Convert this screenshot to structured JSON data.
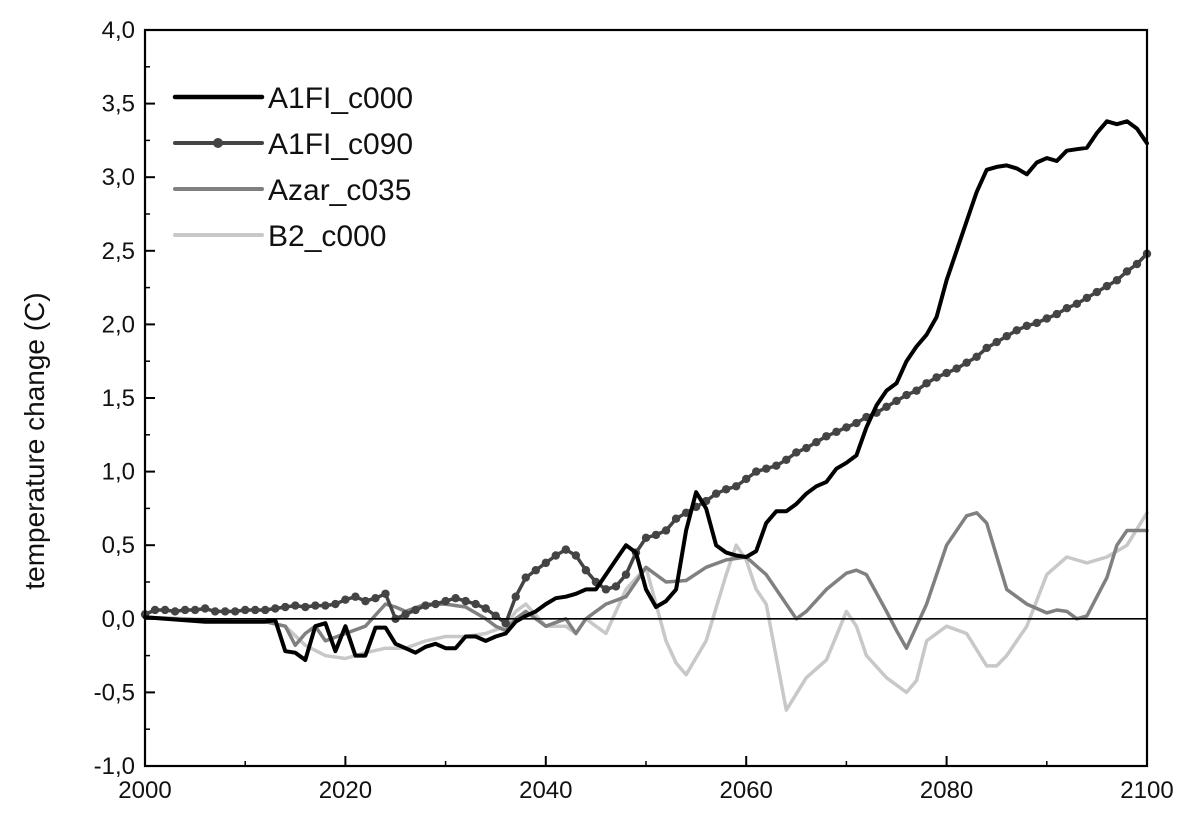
{
  "chart_data": {
    "type": "line",
    "title": "",
    "xlabel": "",
    "ylabel": "temperature change (C)",
    "xlim": [
      2000,
      2100
    ],
    "ylim": [
      -1.0,
      4.0
    ],
    "x_ticks": [
      2000,
      2020,
      2040,
      2060,
      2080,
      2100
    ],
    "x_tick_labels": [
      "2000",
      "2020",
      "2040",
      "2060",
      "2080",
      "2100"
    ],
    "y_ticks": [
      -1.0,
      -0.5,
      0.0,
      0.5,
      1.0,
      1.5,
      2.0,
      2.5,
      3.0,
      3.5,
      4.0
    ],
    "y_tick_labels": [
      "-1,0",
      "-0,5",
      "0,0",
      "0,5",
      "1,0",
      "1,5",
      "2,0",
      "2,5",
      "3,0",
      "3,5",
      "4,0"
    ],
    "grid": false,
    "zero_line": true,
    "legend_position": "top-left",
    "series": [
      {
        "name": "A1FI_c000",
        "color": "#000000",
        "markers": false,
        "x": [
          2000,
          2002,
          2004,
          2006,
          2008,
          2010,
          2012,
          2013,
          2014,
          2015,
          2016,
          2017,
          2018,
          2019,
          2020,
          2021,
          2022,
          2023,
          2024,
          2025,
          2026,
          2027,
          2028,
          2029,
          2030,
          2031,
          2032,
          2033,
          2034,
          2035,
          2036,
          2037,
          2038,
          2039,
          2040,
          2041,
          2042,
          2043,
          2044,
          2045,
          2046,
          2047,
          2048,
          2049,
          2050,
          2051,
          2052,
          2053,
          2054,
          2055,
          2056,
          2057,
          2058,
          2059,
          2060,
          2061,
          2062,
          2063,
          2064,
          2065,
          2066,
          2067,
          2068,
          2069,
          2070,
          2071,
          2072,
          2073,
          2074,
          2075,
          2076,
          2077,
          2078,
          2079,
          2080,
          2081,
          2082,
          2083,
          2084,
          2085,
          2086,
          2087,
          2088,
          2089,
          2090,
          2091,
          2092,
          2093,
          2094,
          2095,
          2096,
          2097,
          2098,
          2099,
          2100
        ],
        "y": [
          0.01,
          0.0,
          -0.01,
          -0.02,
          -0.02,
          -0.02,
          -0.02,
          -0.01,
          -0.22,
          -0.23,
          -0.28,
          -0.05,
          -0.03,
          -0.22,
          -0.05,
          -0.25,
          -0.25,
          -0.06,
          -0.06,
          -0.17,
          -0.2,
          -0.23,
          -0.19,
          -0.17,
          -0.2,
          -0.2,
          -0.12,
          -0.12,
          -0.15,
          -0.12,
          -0.1,
          -0.02,
          0.02,
          0.05,
          0.1,
          0.14,
          0.15,
          0.17,
          0.2,
          0.2,
          0.3,
          0.4,
          0.5,
          0.45,
          0.2,
          0.08,
          0.12,
          0.2,
          0.6,
          0.86,
          0.75,
          0.5,
          0.45,
          0.43,
          0.42,
          0.46,
          0.65,
          0.73,
          0.73,
          0.78,
          0.85,
          0.9,
          0.93,
          1.02,
          1.06,
          1.11,
          1.3,
          1.45,
          1.55,
          1.6,
          1.75,
          1.85,
          1.93,
          2.05,
          2.3,
          2.5,
          2.7,
          2.9,
          3.05,
          3.07,
          3.08,
          3.06,
          3.02,
          3.1,
          3.13,
          3.11,
          3.18,
          3.19,
          3.2,
          3.3,
          3.38,
          3.36,
          3.38,
          3.33,
          3.23
        ]
      },
      {
        "name": "A1FI_c090",
        "color": "#444444",
        "markers": true,
        "x": [
          2000,
          2001,
          2002,
          2003,
          2004,
          2005,
          2006,
          2007,
          2008,
          2009,
          2010,
          2011,
          2012,
          2013,
          2014,
          2015,
          2016,
          2017,
          2018,
          2019,
          2020,
          2021,
          2022,
          2023,
          2024,
          2025,
          2026,
          2027,
          2028,
          2029,
          2030,
          2031,
          2032,
          2033,
          2034,
          2035,
          2036,
          2037,
          2038,
          2039,
          2040,
          2041,
          2042,
          2043,
          2044,
          2045,
          2046,
          2047,
          2048,
          2049,
          2050,
          2051,
          2052,
          2053,
          2054,
          2055,
          2056,
          2057,
          2058,
          2059,
          2060,
          2061,
          2062,
          2063,
          2064,
          2065,
          2066,
          2067,
          2068,
          2069,
          2070,
          2071,
          2072,
          2073,
          2074,
          2075,
          2076,
          2077,
          2078,
          2079,
          2080,
          2081,
          2082,
          2083,
          2084,
          2085,
          2086,
          2087,
          2088,
          2089,
          2090,
          2091,
          2092,
          2093,
          2094,
          2095,
          2096,
          2097,
          2098,
          2099,
          2100
        ],
        "y": [
          0.03,
          0.06,
          0.06,
          0.05,
          0.06,
          0.06,
          0.07,
          0.05,
          0.05,
          0.05,
          0.06,
          0.06,
          0.06,
          0.07,
          0.08,
          0.09,
          0.08,
          0.09,
          0.09,
          0.1,
          0.13,
          0.15,
          0.12,
          0.14,
          0.17,
          0.0,
          0.03,
          0.06,
          0.09,
          0.1,
          0.12,
          0.14,
          0.12,
          0.1,
          0.07,
          0.02,
          -0.03,
          0.15,
          0.28,
          0.33,
          0.38,
          0.43,
          0.47,
          0.43,
          0.33,
          0.25,
          0.2,
          0.22,
          0.3,
          0.45,
          0.55,
          0.57,
          0.6,
          0.68,
          0.72,
          0.76,
          0.8,
          0.85,
          0.88,
          0.9,
          0.95,
          1.0,
          1.02,
          1.04,
          1.08,
          1.13,
          1.16,
          1.2,
          1.24,
          1.27,
          1.3,
          1.33,
          1.37,
          1.4,
          1.44,
          1.48,
          1.52,
          1.55,
          1.6,
          1.64,
          1.67,
          1.7,
          1.74,
          1.78,
          1.84,
          1.88,
          1.92,
          1.96,
          1.99,
          2.01,
          2.04,
          2.07,
          2.11,
          2.14,
          2.18,
          2.22,
          2.26,
          2.3,
          2.36,
          2.41,
          2.48
        ]
      },
      {
        "name": "Azar_c035",
        "color": "#808080",
        "markers": false,
        "x": [
          2000,
          2003,
          2006,
          2009,
          2012,
          2014,
          2015,
          2016,
          2017,
          2018,
          2020,
          2022,
          2024,
          2025,
          2026,
          2028,
          2030,
          2032,
          2034,
          2035,
          2036,
          2037,
          2038,
          2040,
          2042,
          2043,
          2044,
          2046,
          2048,
          2050,
          2052,
          2054,
          2056,
          2058,
          2060,
          2062,
          2064,
          2065,
          2066,
          2068,
          2070,
          2071,
          2072,
          2074,
          2075,
          2076,
          2078,
          2080,
          2082,
          2083,
          2084,
          2086,
          2088,
          2090,
          2091,
          2092,
          2093,
          2094,
          2096,
          2097,
          2098,
          2100
        ],
        "y": [
          0.01,
          0.0,
          -0.01,
          -0.02,
          -0.02,
          -0.05,
          -0.18,
          -0.1,
          -0.05,
          -0.15,
          -0.1,
          -0.05,
          0.1,
          0.08,
          0.05,
          0.1,
          0.1,
          0.08,
          0.0,
          -0.05,
          -0.08,
          0.0,
          0.05,
          -0.05,
          0.0,
          -0.1,
          0.0,
          0.1,
          0.15,
          0.35,
          0.25,
          0.26,
          0.35,
          0.4,
          0.42,
          0.3,
          0.1,
          0.0,
          0.05,
          0.2,
          0.31,
          0.33,
          0.3,
          0.05,
          -0.08,
          -0.2,
          0.1,
          0.5,
          0.7,
          0.72,
          0.65,
          0.2,
          0.1,
          0.04,
          0.06,
          0.05,
          0.0,
          0.02,
          0.28,
          0.5,
          0.6,
          0.6
        ]
      },
      {
        "name": "B2_c000",
        "color": "#c8c8c8",
        "markers": false,
        "x": [
          2000,
          2004,
          2008,
          2012,
          2014,
          2016,
          2018,
          2020,
          2022,
          2024,
          2026,
          2028,
          2030,
          2032,
          2034,
          2036,
          2037,
          2038,
          2040,
          2042,
          2043,
          2044,
          2046,
          2048,
          2050,
          2051,
          2052,
          2053,
          2054,
          2056,
          2058,
          2059,
          2060,
          2061,
          2062,
          2064,
          2066,
          2068,
          2070,
          2071,
          2072,
          2074,
          2076,
          2077,
          2078,
          2080,
          2082,
          2084,
          2085,
          2086,
          2088,
          2090,
          2092,
          2094,
          2096,
          2098,
          2100
        ],
        "y": [
          0.01,
          0.0,
          -0.01,
          -0.02,
          -0.05,
          -0.18,
          -0.25,
          -0.27,
          -0.23,
          -0.2,
          -0.2,
          -0.15,
          -0.12,
          -0.12,
          -0.1,
          -0.05,
          0.05,
          0.1,
          -0.05,
          -0.05,
          -0.1,
          0.0,
          -0.1,
          0.2,
          0.35,
          0.1,
          -0.15,
          -0.3,
          -0.38,
          -0.15,
          0.3,
          0.5,
          0.4,
          0.2,
          0.1,
          -0.62,
          -0.4,
          -0.28,
          0.05,
          -0.05,
          -0.25,
          -0.4,
          -0.5,
          -0.42,
          -0.15,
          -0.05,
          -0.1,
          -0.32,
          -0.32,
          -0.25,
          -0.05,
          0.3,
          0.42,
          0.38,
          0.42,
          0.5,
          0.72
        ]
      }
    ]
  }
}
